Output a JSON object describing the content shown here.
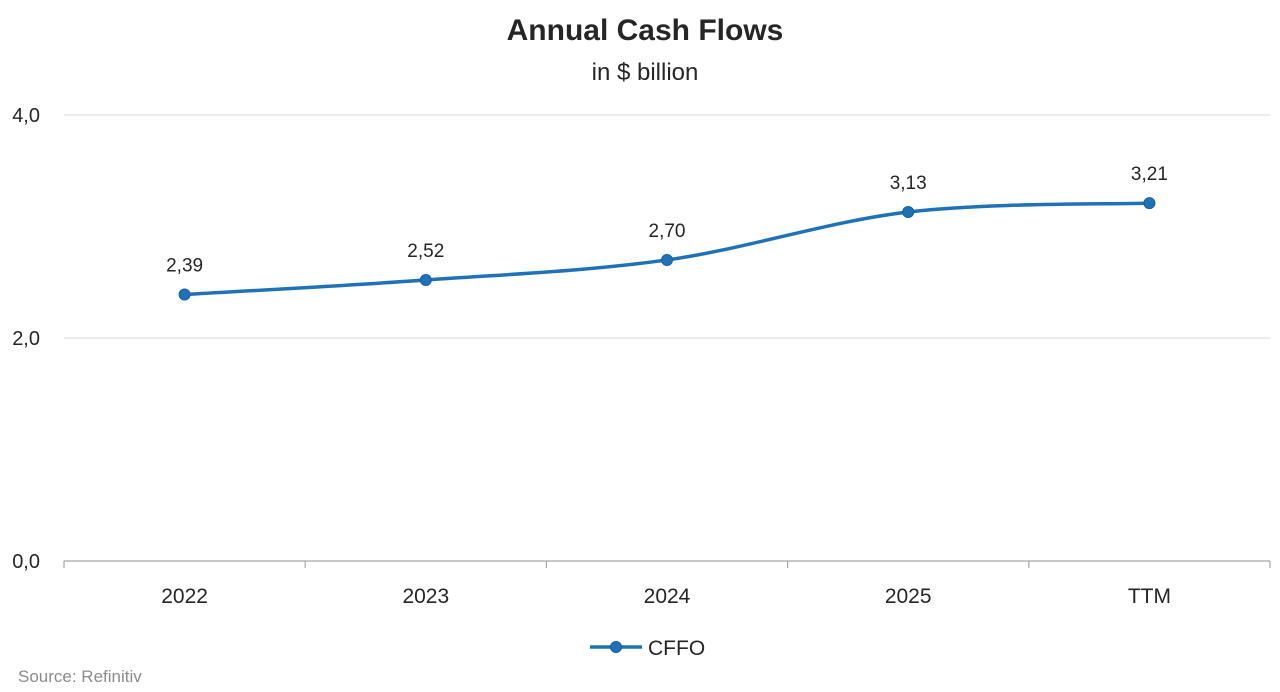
{
  "chart_data": {
    "type": "line",
    "title": "Annual Cash Flows",
    "subtitle": "in $ billion",
    "categories": [
      "2022",
      "2023",
      "2024",
      "2025",
      "TTM"
    ],
    "series": [
      {
        "name": "CFFO",
        "values": [
          2.39,
          2.52,
          2.7,
          3.13,
          3.21
        ],
        "labels": [
          "2,39",
          "2,52",
          "2,70",
          "3,13",
          "3,21"
        ],
        "color": "#1f72b8"
      }
    ],
    "ylim": [
      0,
      4
    ],
    "yticks": [
      0,
      2,
      4
    ],
    "ytick_labels": [
      "0,0",
      "2,0",
      "4,0"
    ],
    "xlabel": "",
    "ylabel": "",
    "grid": true,
    "legend": "bottom",
    "source": "Source: Refinitiv"
  }
}
